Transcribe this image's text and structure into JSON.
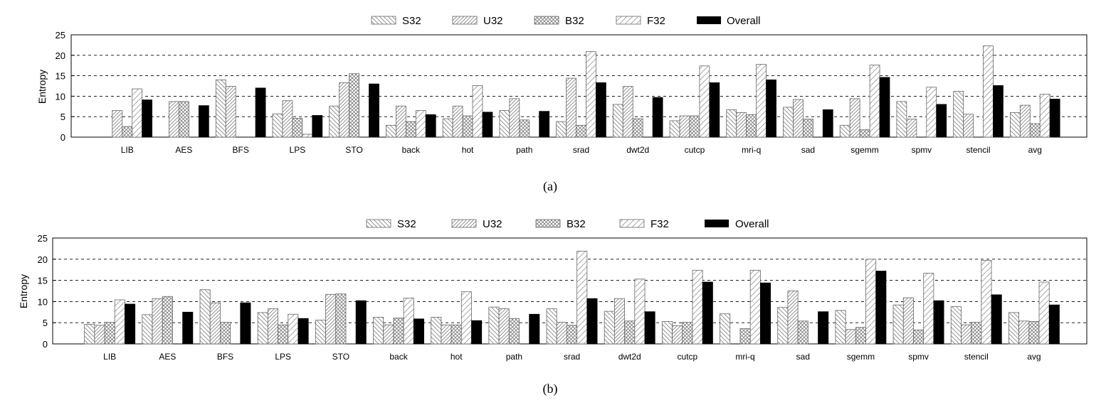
{
  "series_colors": {
    "S32": "#ffffff",
    "U32": "#ffffff",
    "B32": "#ffffff",
    "F32": "#ffffff",
    "Overall": "#000000"
  },
  "chart_data": [
    {
      "type": "bar",
      "caption": "(a)",
      "ylabel": "Entropy",
      "ylim": [
        0,
        25
      ],
      "yticks": [
        0,
        5,
        10,
        15,
        20,
        25
      ],
      "grid": "horizontal dashed",
      "legend_position": "top",
      "categories": [
        "LIB",
        "AES",
        "BFS",
        "LPS",
        "STO",
        "back",
        "hot",
        "path",
        "srad",
        "dwt2d",
        "cutcp",
        "mri-q",
        "sad",
        "sgemm",
        "spmv",
        "stencil",
        "avg"
      ],
      "series": [
        {
          "name": "S32",
          "values": [
            0,
            0,
            14.0,
            5.7,
            7.6,
            2.9,
            4.5,
            6.5,
            3.8,
            8.0,
            4.0,
            6.7,
            7.3,
            2.9,
            8.7,
            11.2,
            6.0
          ]
        },
        {
          "name": "U32",
          "values": [
            6.5,
            8.7,
            12.4,
            8.9,
            13.3,
            7.6,
            7.6,
            9.4,
            14.4,
            12.4,
            5.2,
            6.0,
            9.2,
            9.4,
            4.4,
            5.6,
            7.8
          ]
        },
        {
          "name": "B32",
          "values": [
            2.6,
            8.7,
            0,
            4.6,
            15.5,
            3.8,
            5.2,
            4.2,
            2.9,
            4.5,
            5.2,
            5.5,
            4.4,
            1.8,
            0,
            0,
            3.3
          ]
        },
        {
          "name": "F32",
          "values": [
            11.8,
            0,
            0,
            0.7,
            0,
            6.5,
            12.6,
            0,
            20.9,
            0,
            17.4,
            17.8,
            0,
            17.6,
            12.2,
            22.3,
            10.5
          ]
        },
        {
          "name": "Overall",
          "values": [
            9.1,
            7.7,
            12.0,
            5.3,
            13.0,
            5.5,
            6.1,
            6.3,
            13.3,
            9.7,
            13.3,
            14.0,
            6.7,
            14.6,
            8.0,
            12.6,
            9.3
          ]
        }
      ]
    },
    {
      "type": "bar",
      "caption": "(b)",
      "ylabel": "Entropy",
      "ylim": [
        0,
        25
      ],
      "yticks": [
        0,
        5,
        10,
        15,
        20,
        25
      ],
      "grid": "horizontal dashed",
      "legend_position": "top",
      "categories": [
        "LIB",
        "AES",
        "BFS",
        "LPS",
        "STO",
        "back",
        "hot",
        "path",
        "srad",
        "dwt2d",
        "cutcp",
        "mri-q",
        "sad",
        "sgemm",
        "spmv",
        "stencil",
        "avg"
      ],
      "series": [
        {
          "name": "S32",
          "values": [
            4.6,
            6.9,
            12.8,
            7.4,
            5.6,
            6.3,
            6.3,
            8.7,
            8.3,
            7.7,
            5.3,
            7.1,
            8.6,
            7.9,
            9.2,
            8.8,
            7.4
          ]
        },
        {
          "name": "U32",
          "values": [
            4.4,
            10.7,
            9.7,
            8.3,
            11.7,
            4.5,
            4.5,
            8.3,
            5.1,
            10.7,
            4.3,
            0,
            12.5,
            3.4,
            10.9,
            4.5,
            5.4
          ]
        },
        {
          "name": "B32",
          "values": [
            5.1,
            11.2,
            5.1,
            4.5,
            11.8,
            6.1,
            4.5,
            6.0,
            4.4,
            5.4,
            5.1,
            3.6,
            5.4,
            3.9,
            3.3,
            5.1,
            5.3
          ]
        },
        {
          "name": "F32",
          "values": [
            10.4,
            0,
            0,
            7.0,
            0,
            10.8,
            12.3,
            0,
            21.9,
            15.3,
            17.4,
            17.4,
            0,
            20.0,
            16.7,
            19.7,
            14.6
          ]
        },
        {
          "name": "Overall",
          "values": [
            9.4,
            7.5,
            9.7,
            6.0,
            10.2,
            5.9,
            5.5,
            7.0,
            10.7,
            7.6,
            14.6,
            14.4,
            7.6,
            17.2,
            10.2,
            11.6,
            9.2
          ]
        }
      ]
    }
  ]
}
